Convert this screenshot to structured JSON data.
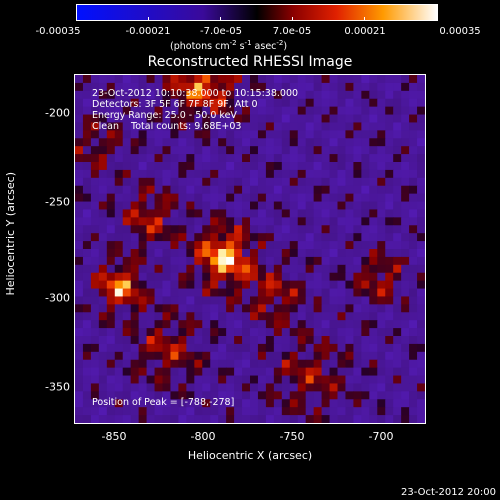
{
  "colorbar": {
    "ticks": [
      "-0.00035",
      "-0.00021",
      "-7.0e-05",
      "7.0e-05",
      "0.00021",
      "0.00035"
    ],
    "units_main": "(photons cm",
    "units_exp1": "-2",
    "units_mid": " s",
    "units_exp2": "-1",
    "units_end": " asec",
    "units_exp3": "-2",
    "units_close": ")"
  },
  "chart_data": {
    "type": "heatmap",
    "title": "Reconstructed RHESSI Image",
    "xlabel": "Heliocentric X (arcsec)",
    "ylabel": "Heliocentric Y (arcsec)",
    "xlim": [
      -872,
      -675
    ],
    "ylim": [
      -372,
      -175
    ],
    "x_ticks": [
      -850,
      -800,
      -750,
      -700
    ],
    "y_ticks": [
      -200,
      -250,
      -300,
      -350
    ],
    "colorbar_range": [
      -0.00035,
      0.00035
    ],
    "peak": [
      -788,
      -278
    ],
    "colors": {
      "min": "#0000ff",
      "mid": "#000000",
      "max": "#ffffff"
    }
  },
  "info": {
    "line1": "23-Oct-2012 10:10:38.000 to 10:15:38.000",
    "line2": "Detectors: 3F 5F 6F 7F 8F 9F, Att 0",
    "line3": "Energy Range: 25.0 - 50.0 keV",
    "line4": "Clean    Total counts: 9.68E+03",
    "peak_text": "Position of Peak = [-788,-278]"
  },
  "footer": "23-Oct-2012 20:00"
}
